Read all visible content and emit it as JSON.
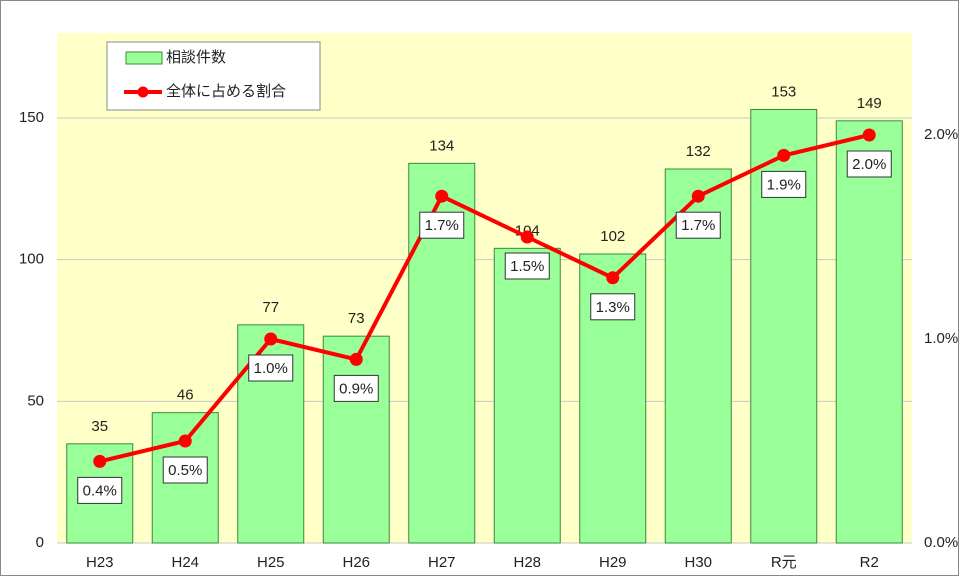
{
  "chart_data": {
    "type": "bar_line",
    "categories": [
      "H23",
      "H24",
      "H25",
      "H26",
      "H27",
      "H28",
      "H29",
      "H30",
      "R元",
      "R2"
    ],
    "series": [
      {
        "name": "相談件数",
        "type": "bar",
        "color": "#99ff99",
        "values": [
          35,
          46,
          77,
          73,
          134,
          104,
          102,
          132,
          153,
          149
        ]
      },
      {
        "name": "全体に占める割合",
        "type": "line",
        "axis": "y2",
        "color": "#ff0000",
        "values": [
          0.4,
          0.5,
          1.0,
          0.9,
          1.7,
          1.5,
          1.3,
          1.7,
          1.9,
          2.0
        ],
        "value_labels": [
          "0.4%",
          "0.5%",
          "1.0%",
          "0.9%",
          "1.7%",
          "1.5%",
          "1.3%",
          "1.7%",
          "1.9%",
          "2.0%"
        ]
      }
    ],
    "ylim": [
      0,
      180
    ],
    "yticks": [
      0,
      50,
      100,
      150
    ],
    "y2lim": [
      0,
      2.5
    ],
    "y2ticks": [
      {
        "value": 0,
        "label": "0.0%"
      },
      {
        "value": 1,
        "label": "1.0%"
      },
      {
        "value": 2,
        "label": "2.0%"
      }
    ],
    "grid": true,
    "legend": "top-left"
  }
}
